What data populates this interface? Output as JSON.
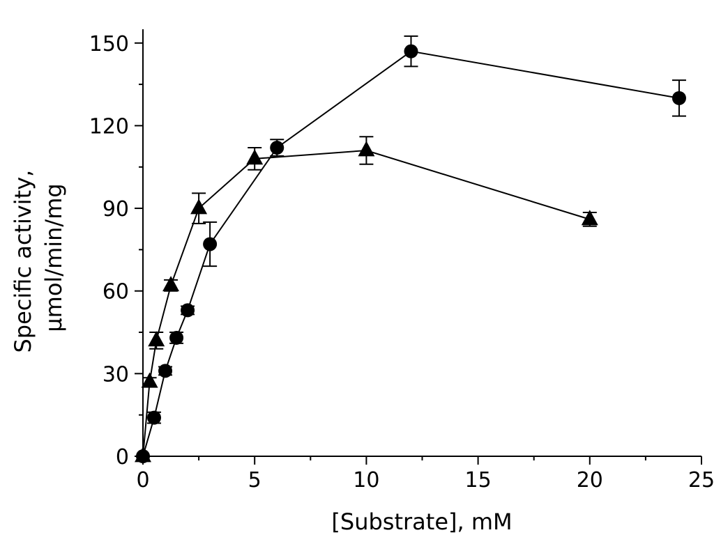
{
  "chart_data": {
    "type": "scatter",
    "xlabel": "[Substrate], mM",
    "ylabel_line1": "Specific activity,",
    "ylabel_line2": "μmol/min/mg",
    "xlim": [
      0,
      25
    ],
    "ylim": [
      0,
      155
    ],
    "xticks": [
      0,
      5,
      10,
      15,
      20,
      25
    ],
    "yticks": [
      0,
      30,
      60,
      90,
      120,
      150
    ],
    "xtick_labels": [
      "0",
      "5",
      "10",
      "15",
      "20",
      "25"
    ],
    "ytick_labels": [
      "0",
      "30",
      "60",
      "90",
      "120",
      "150"
    ],
    "grid": false,
    "series": [
      {
        "name": "circles",
        "marker": "circle",
        "x": [
          0,
          0.5,
          1,
          1.5,
          2,
          3,
          6,
          12,
          24
        ],
        "y": [
          0,
          14,
          31,
          43,
          53,
          77,
          112,
          147,
          130
        ],
        "err": [
          0,
          2,
          1.5,
          2,
          1.5,
          8,
          3,
          5.5,
          6.5
        ]
      },
      {
        "name": "triangles",
        "marker": "triangle",
        "x": [
          0,
          0.3,
          0.6,
          1.25,
          2.5,
          5,
          10,
          20
        ],
        "y": [
          0,
          27,
          42,
          62,
          90,
          108,
          111,
          86
        ],
        "err": [
          0,
          1.5,
          3,
          2,
          5.5,
          4,
          5,
          2.5
        ]
      }
    ]
  }
}
